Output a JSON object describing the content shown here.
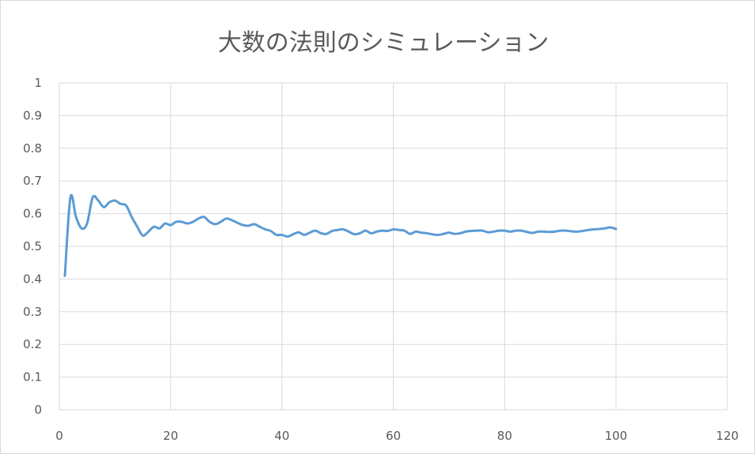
{
  "chart_data": {
    "type": "line",
    "title": "大数の法則のシミュレーション",
    "xlabel": "",
    "ylabel": "",
    "xlim": [
      0,
      120
    ],
    "ylim": [
      0,
      1
    ],
    "x_ticks": [
      "0",
      "20",
      "40",
      "60",
      "80",
      "100",
      "120"
    ],
    "y_ticks": [
      "0",
      "0.1",
      "0.2",
      "0.3",
      "0.4",
      "0.5",
      "0.6",
      "0.7",
      "0.8",
      "0.9",
      "1"
    ],
    "grid": true,
    "legend": "none",
    "colors": {
      "line": "#5b9bd5",
      "grid": "#d9d9d9",
      "text": "#595959"
    },
    "series": [
      {
        "x": [
          1,
          2,
          3,
          4,
          5,
          6,
          7,
          8,
          9,
          10,
          11,
          12,
          13,
          14,
          15,
          16,
          17,
          18,
          19,
          20,
          21,
          22,
          23,
          24,
          25,
          26,
          27,
          28,
          29,
          30,
          31,
          32,
          33,
          34,
          35,
          36,
          37,
          38,
          39,
          40,
          41,
          42,
          43,
          44,
          45,
          46,
          47,
          48,
          49,
          50,
          51,
          52,
          53,
          54,
          55,
          56,
          57,
          58,
          59,
          60,
          61,
          62,
          63,
          64,
          65,
          66,
          67,
          68,
          69,
          70,
          71,
          72,
          73,
          74,
          75,
          76,
          77,
          78,
          79,
          80,
          81,
          82,
          83,
          84,
          85,
          86,
          87,
          88,
          89,
          90,
          91,
          92,
          93,
          94,
          95,
          96,
          97,
          98,
          99,
          100
        ],
        "values": [
          0.41,
          0.65,
          0.59,
          0.555,
          0.57,
          0.65,
          0.64,
          0.62,
          0.635,
          0.64,
          0.63,
          0.625,
          0.59,
          0.56,
          0.533,
          0.545,
          0.56,
          0.555,
          0.57,
          0.565,
          0.575,
          0.575,
          0.57,
          0.575,
          0.585,
          0.59,
          0.575,
          0.568,
          0.575,
          0.585,
          0.58,
          0.572,
          0.565,
          0.563,
          0.568,
          0.56,
          0.552,
          0.547,
          0.535,
          0.535,
          0.53,
          0.537,
          0.543,
          0.535,
          0.542,
          0.548,
          0.54,
          0.538,
          0.547,
          0.55,
          0.552,
          0.545,
          0.537,
          0.54,
          0.548,
          0.54,
          0.545,
          0.548,
          0.547,
          0.552,
          0.55,
          0.548,
          0.538,
          0.545,
          0.542,
          0.54,
          0.537,
          0.535,
          0.538,
          0.542,
          0.538,
          0.54,
          0.545,
          0.547,
          0.548,
          0.548,
          0.543,
          0.545,
          0.548,
          0.548,
          0.545,
          0.548,
          0.548,
          0.544,
          0.541,
          0.545,
          0.545,
          0.544,
          0.545,
          0.548,
          0.548,
          0.546,
          0.545,
          0.547,
          0.55,
          0.552,
          0.553,
          0.555,
          0.558,
          0.553
        ]
      }
    ]
  }
}
